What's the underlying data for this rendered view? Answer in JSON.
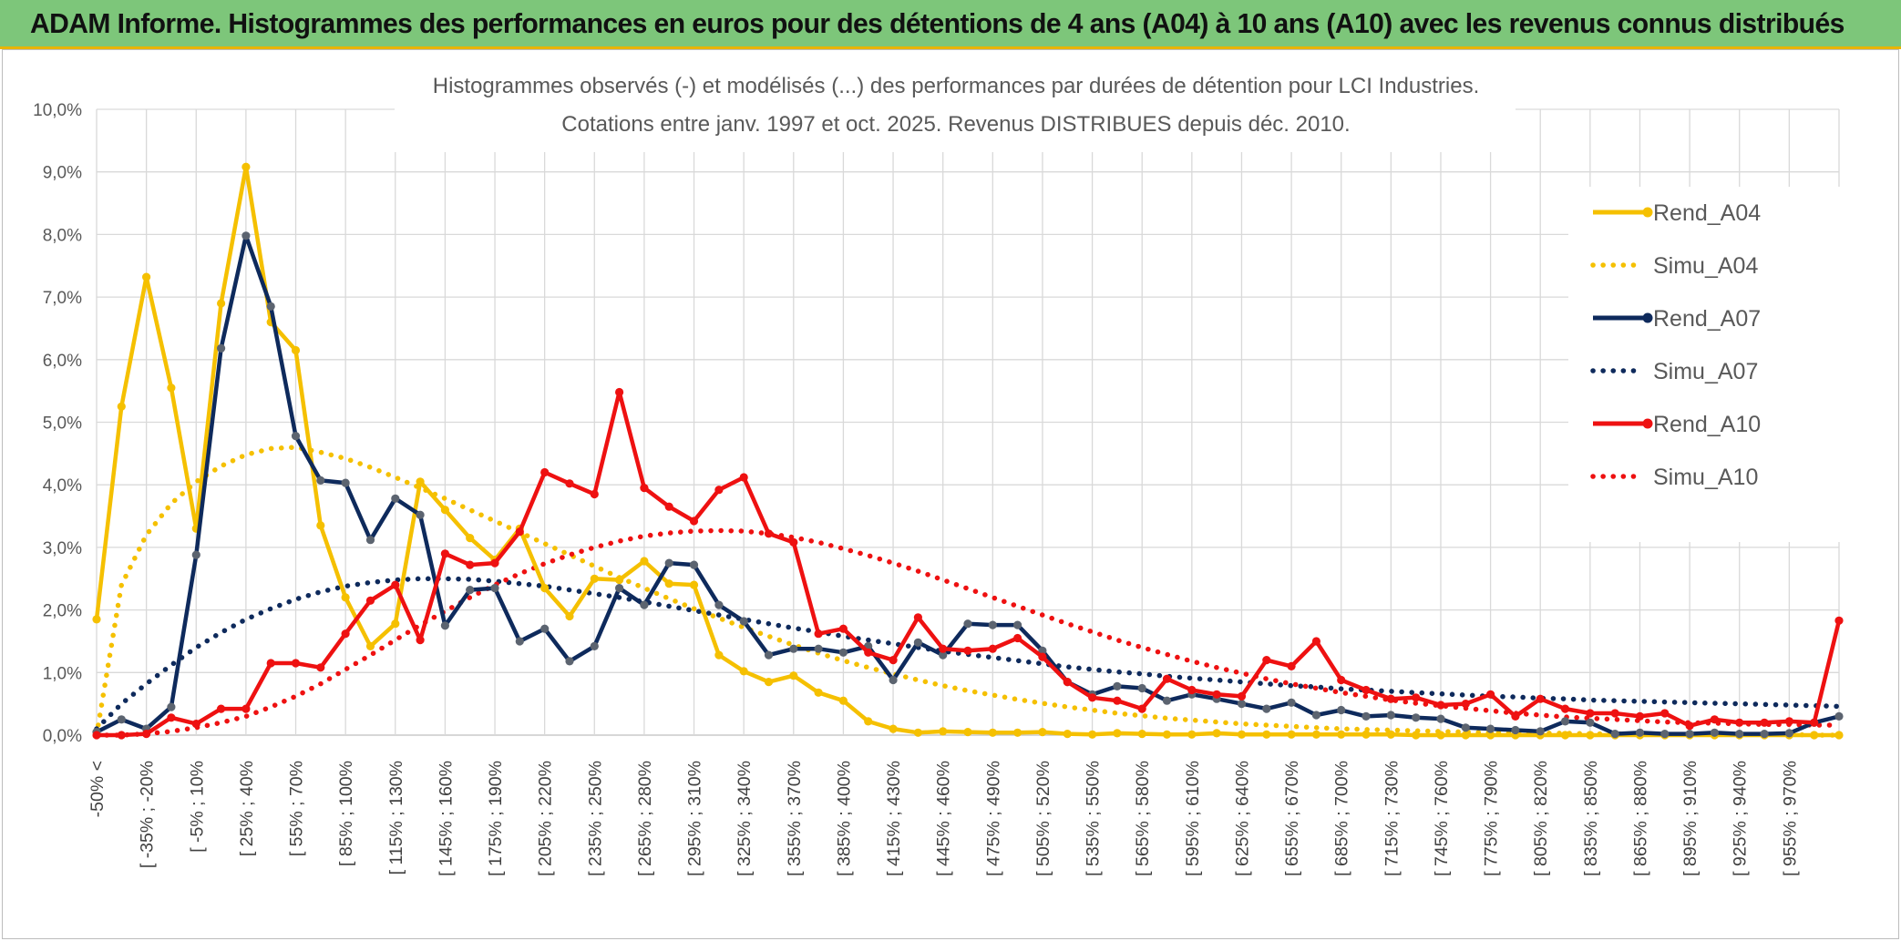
{
  "banner": {
    "title": "ADAM Informe. Histogrammes des performances en euros pour des détentions de 4 ans (A04) à 10 ans (A10) avec les revenus connus distribués"
  },
  "chart_data": {
    "type": "line",
    "title_lines": [
      "Histogrammes observés (-) et modélisés (...) des performances par durées de détention pour LCI Industries.",
      "Cotations entre janv. 1997 et oct. 2025. Revenus DISTRIBUES depuis déc. 2010."
    ],
    "xlabel": "",
    "ylabel": "",
    "ylim": [
      0,
      10
    ],
    "y_ticks": [
      "0,0%",
      "1,0%",
      "2,0%",
      "3,0%",
      "4,0%",
      "5,0%",
      "6,0%",
      "7,0%",
      "8,0%",
      "9,0%",
      "10,0%"
    ],
    "grid": true,
    "legend_position": "right",
    "x_labels": [
      "-50% <",
      "[ -35% ; -20%",
      "[ -5% ; 10%",
      "[ 25% ; 40%",
      "[ 55% ; 70%",
      "[ 85% ; 100%",
      "[ 115% ; 130%",
      "[ 145% ; 160%",
      "[ 175% ; 190%",
      "[ 205% ; 220%",
      "[ 235% ; 250%",
      "[ 265% ; 280%",
      "[ 295% ; 310%",
      "[ 325% ; 340%",
      "[ 355% ; 370%",
      "[ 385% ; 400%",
      "[ 415% ; 430%",
      "[ 445% ; 460%",
      "[ 475% ; 490%",
      "[ 505% ; 520%",
      "[ 535% ; 550%",
      "[ 565% ; 580%",
      "[ 595% ; 610%",
      "[ 625% ; 640%",
      "[ 655% ; 670%",
      "[ 685% ; 700%",
      "[ 715% ; 730%",
      "[ 745% ; 760%",
      "[ 775% ; 790%",
      "[ 805% ; 820%",
      "[ 835% ; 850%",
      "[ 865% ; 880%",
      "[ 895% ; 910%",
      "[ 925% ; 940%",
      "[ 955% ; 970%"
    ],
    "series": [
      {
        "name": "Rend_A04",
        "style": "solid",
        "color": "#f5c000",
        "values": [
          1.85,
          5.25,
          7.32,
          5.55,
          3.3,
          6.9,
          9.08,
          6.6,
          6.15,
          3.35,
          2.2,
          1.42,
          1.78,
          4.05,
          3.6,
          3.15,
          2.8,
          3.3,
          2.35,
          1.9,
          2.5,
          2.48,
          2.78,
          2.42,
          2.4,
          1.28,
          1.02,
          0.85,
          0.95,
          0.68,
          0.55,
          0.22,
          0.1,
          0.04,
          0.06,
          0.05,
          0.04,
          0.04,
          0.05,
          0.02,
          0.01,
          0.03,
          0.02,
          0.01,
          0.01,
          0.03,
          0.01,
          0.01,
          0.01,
          0.01,
          0.01,
          0.01,
          0.01,
          0.0,
          0.0,
          0.0,
          0.0,
          0.0,
          0.0,
          0.0,
          0.0,
          0.0,
          0.0,
          0.0,
          0.0,
          0.0,
          0.0,
          0.0,
          0.0,
          0.0,
          0.0
        ]
      },
      {
        "name": "Simu_A04",
        "style": "dotted",
        "color": "#f5c000",
        "values": [
          0.0,
          2.4,
          3.2,
          3.7,
          4.05,
          4.3,
          4.48,
          4.58,
          4.6,
          4.52,
          4.42,
          4.28,
          4.12,
          3.95,
          3.78,
          3.6,
          3.42,
          3.24,
          3.06,
          2.88,
          2.7,
          2.52,
          2.35,
          2.18,
          2.02,
          1.87,
          1.72,
          1.58,
          1.44,
          1.31,
          1.19,
          1.08,
          0.98,
          0.88,
          0.79,
          0.71,
          0.64,
          0.57,
          0.51,
          0.45,
          0.4,
          0.35,
          0.31,
          0.27,
          0.24,
          0.21,
          0.18,
          0.16,
          0.14,
          0.12,
          0.1,
          0.09,
          0.08,
          0.07,
          0.06,
          0.05,
          0.04,
          0.04,
          0.03,
          0.03,
          0.02,
          0.02,
          0.02,
          0.01,
          0.01,
          0.01,
          0.01,
          0.01,
          0.01,
          0.0,
          0.0
        ]
      },
      {
        "name": "Rend_A07",
        "style": "solid",
        "color": "#0e2a5c",
        "values": [
          0.05,
          0.25,
          0.1,
          0.45,
          2.88,
          6.18,
          7.98,
          6.85,
          4.78,
          4.07,
          4.03,
          3.12,
          3.78,
          3.52,
          1.75,
          2.32,
          2.35,
          1.5,
          1.7,
          1.18,
          1.42,
          2.35,
          2.08,
          2.75,
          2.72,
          2.08,
          1.82,
          1.28,
          1.38,
          1.38,
          1.32,
          1.42,
          0.88,
          1.48,
          1.28,
          1.78,
          1.76,
          1.76,
          1.35,
          0.85,
          0.65,
          0.78,
          0.75,
          0.55,
          0.65,
          0.58,
          0.5,
          0.42,
          0.52,
          0.32,
          0.4,
          0.3,
          0.32,
          0.28,
          0.26,
          0.12,
          0.1,
          0.08,
          0.06,
          0.22,
          0.2,
          0.02,
          0.04,
          0.02,
          0.02,
          0.04,
          0.02,
          0.02,
          0.03,
          0.2,
          0.3
        ]
      },
      {
        "name": "Simu_A07",
        "style": "dotted",
        "color": "#0e2a5c",
        "values": [
          0.1,
          0.5,
          0.82,
          1.12,
          1.4,
          1.64,
          1.85,
          2.02,
          2.17,
          2.29,
          2.38,
          2.44,
          2.48,
          2.5,
          2.5,
          2.49,
          2.46,
          2.42,
          2.38,
          2.32,
          2.26,
          2.2,
          2.13,
          2.06,
          1.99,
          1.92,
          1.85,
          1.78,
          1.71,
          1.65,
          1.58,
          1.52,
          1.46,
          1.4,
          1.34,
          1.29,
          1.24,
          1.19,
          1.14,
          1.09,
          1.05,
          1.01,
          0.98,
          0.94,
          0.91,
          0.88,
          0.85,
          0.82,
          0.79,
          0.77,
          0.74,
          0.72,
          0.7,
          0.68,
          0.66,
          0.64,
          0.62,
          0.61,
          0.59,
          0.58,
          0.56,
          0.55,
          0.54,
          0.53,
          0.52,
          0.51,
          0.5,
          0.49,
          0.48,
          0.47,
          0.46
        ]
      },
      {
        "name": "Rend_A10",
        "style": "solid",
        "color": "#ee1111",
        "values": [
          0.0,
          0.0,
          0.02,
          0.28,
          0.18,
          0.42,
          0.42,
          1.15,
          1.15,
          1.08,
          1.62,
          2.15,
          2.4,
          1.52,
          2.9,
          2.72,
          2.75,
          3.25,
          4.2,
          4.02,
          3.85,
          5.48,
          3.95,
          3.65,
          3.42,
          3.92,
          4.12,
          3.22,
          3.08,
          1.62,
          1.7,
          1.32,
          1.2,
          1.88,
          1.38,
          1.35,
          1.38,
          1.55,
          1.25,
          0.85,
          0.6,
          0.55,
          0.42,
          0.9,
          0.72,
          0.65,
          0.62,
          1.2,
          1.1,
          1.5,
          0.88,
          0.72,
          0.58,
          0.6,
          0.48,
          0.5,
          0.65,
          0.3,
          0.58,
          0.42,
          0.35,
          0.35,
          0.3,
          0.35,
          0.15,
          0.25,
          0.2,
          0.2,
          0.22,
          0.2,
          1.83
        ]
      },
      {
        "name": "Simu_A10",
        "style": "dotted",
        "color": "#ee1111",
        "values": [
          0.0,
          0.0,
          0.02,
          0.06,
          0.12,
          0.2,
          0.3,
          0.45,
          0.62,
          0.82,
          1.05,
          1.28,
          1.52,
          1.76,
          1.98,
          2.2,
          2.4,
          2.58,
          2.74,
          2.88,
          3.0,
          3.1,
          3.18,
          3.23,
          3.26,
          3.27,
          3.26,
          3.22,
          3.16,
          3.08,
          2.98,
          2.87,
          2.75,
          2.62,
          2.48,
          2.34,
          2.2,
          2.06,
          1.92,
          1.78,
          1.65,
          1.52,
          1.4,
          1.29,
          1.18,
          1.08,
          0.99,
          0.9,
          0.82,
          0.75,
          0.68,
          0.62,
          0.56,
          0.51,
          0.47,
          0.43,
          0.39,
          0.35,
          0.32,
          0.29,
          0.27,
          0.25,
          0.23,
          0.21,
          0.2,
          0.19,
          0.18,
          0.17,
          0.17,
          0.16,
          0.16
        ]
      }
    ]
  }
}
